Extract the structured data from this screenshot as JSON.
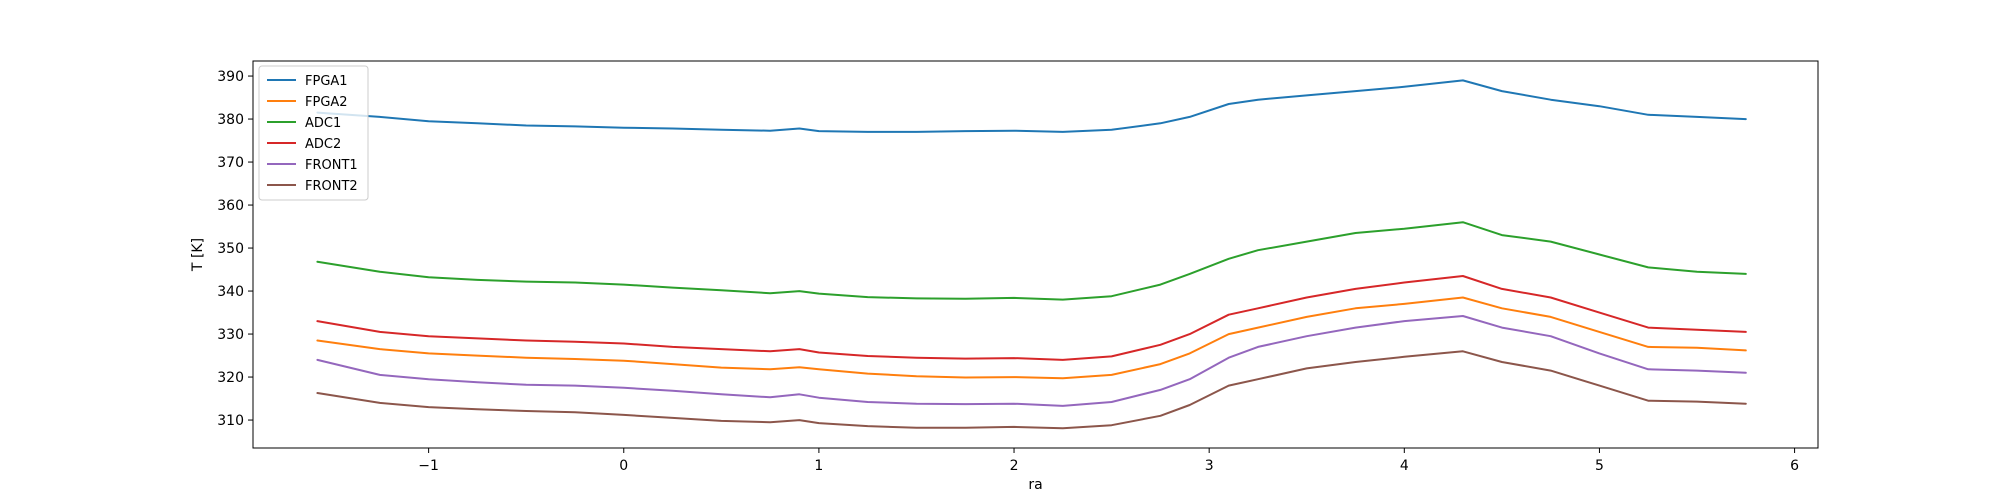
{
  "chart_data": {
    "type": "line",
    "title": "",
    "xlabel": "ra",
    "ylabel": "T [K]",
    "xlim": [
      -1.9,
      6.12
    ],
    "ylim": [
      303.5,
      393.5
    ],
    "xticks": [
      -1,
      0,
      1,
      2,
      3,
      4,
      5,
      6
    ],
    "yticks": [
      310,
      320,
      330,
      340,
      350,
      360,
      370,
      380,
      390
    ],
    "xtick_labels": [
      "−1",
      "0",
      "1",
      "2",
      "3",
      "4",
      "5",
      "6"
    ],
    "ytick_labels": [
      "310",
      "320",
      "330",
      "340",
      "350",
      "360",
      "370",
      "380",
      "390"
    ],
    "grid": false,
    "legend_position": "top-left",
    "x": [
      -1.57,
      -1.25,
      -1.0,
      -0.75,
      -0.5,
      -0.25,
      0.0,
      0.25,
      0.5,
      0.75,
      0.9,
      1.0,
      1.25,
      1.5,
      1.75,
      2.0,
      2.25,
      2.5,
      2.75,
      2.9,
      3.1,
      3.25,
      3.5,
      3.75,
      4.0,
      4.3,
      4.5,
      4.75,
      5.0,
      5.25,
      5.5,
      5.75
    ],
    "series": [
      {
        "name": "FPGA1",
        "color": "#1f77b4",
        "values": [
          381.5,
          380.5,
          379.5,
          379,
          378.5,
          378.3,
          378,
          377.8,
          377.5,
          377.3,
          377.8,
          377.2,
          377,
          377,
          377.2,
          377.3,
          377,
          377.5,
          379,
          380.5,
          383.5,
          384.5,
          385.5,
          386.5,
          387.5,
          389,
          386.5,
          384.5,
          383,
          381,
          380.5,
          380
        ]
      },
      {
        "name": "FPGA2",
        "color": "#ff7f0e",
        "values": [
          328.5,
          326.5,
          325.5,
          325,
          324.5,
          324.2,
          323.8,
          323,
          322.2,
          321.8,
          322.3,
          321.8,
          320.8,
          320.2,
          319.9,
          320,
          319.7,
          320.5,
          323,
          325.5,
          330,
          331.5,
          334,
          336,
          337,
          338.5,
          336,
          334,
          330.5,
          327,
          326.8,
          326.2
        ]
      },
      {
        "name": "ADC1",
        "color": "#2ca02c",
        "values": [
          346.8,
          344.5,
          343.2,
          342.6,
          342.2,
          342,
          341.5,
          340.8,
          340.2,
          339.5,
          340,
          339.4,
          338.6,
          338.3,
          338.2,
          338.4,
          338,
          338.8,
          341.5,
          344,
          347.5,
          349.5,
          351.5,
          353.5,
          354.5,
          356,
          353,
          351.5,
          348.5,
          345.5,
          344.5,
          344
        ]
      },
      {
        "name": "ADC2",
        "color": "#d62728",
        "values": [
          333,
          330.5,
          329.5,
          329,
          328.5,
          328.2,
          327.8,
          327,
          326.5,
          326,
          326.5,
          325.7,
          324.9,
          324.5,
          324.3,
          324.4,
          324,
          324.8,
          327.5,
          330,
          334.5,
          336,
          338.5,
          340.5,
          342,
          343.5,
          340.5,
          338.5,
          335,
          331.5,
          331,
          330.5
        ]
      },
      {
        "name": "FRONT1",
        "color": "#9467bd",
        "values": [
          324,
          320.5,
          319.5,
          318.8,
          318.2,
          318,
          317.5,
          316.8,
          316,
          315.3,
          316,
          315.2,
          314.2,
          313.8,
          313.7,
          313.8,
          313.3,
          314.2,
          317,
          319.5,
          324.5,
          327,
          329.5,
          331.5,
          333,
          334.2,
          331.5,
          329.5,
          325.5,
          321.8,
          321.5,
          321
        ]
      },
      {
        "name": "FRONT2",
        "color": "#8c564b",
        "values": [
          316.3,
          314,
          313,
          312.5,
          312.1,
          311.8,
          311.2,
          310.5,
          309.8,
          309.5,
          310,
          309.3,
          308.6,
          308.2,
          308.2,
          308.4,
          308.1,
          308.8,
          311,
          313.5,
          318,
          319.5,
          322,
          323.5,
          324.7,
          326,
          323.5,
          321.5,
          318,
          314.5,
          314.3,
          313.8
        ]
      }
    ]
  }
}
